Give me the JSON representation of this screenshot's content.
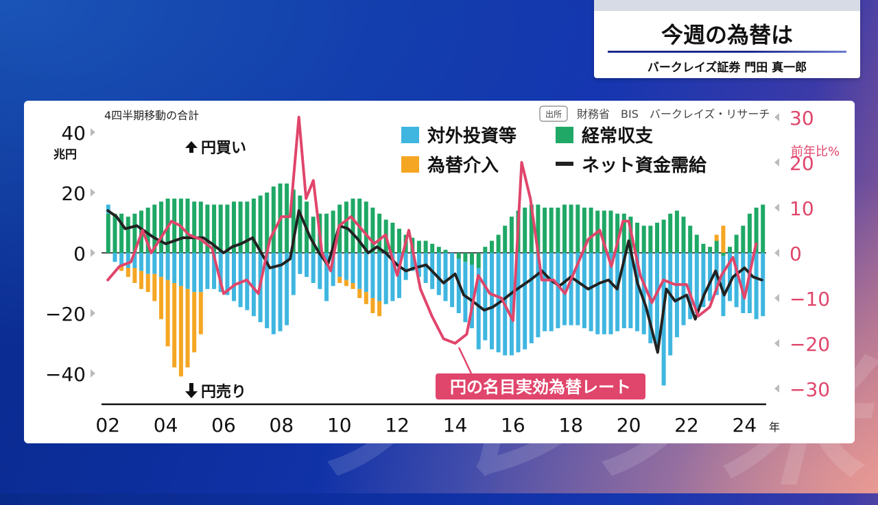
{
  "header": {
    "title": "今週の為替は",
    "speaker": "バークレイズ証券 門田 真一郎"
  },
  "watermark": "ノレノ米",
  "chart_data": {
    "type": "bar",
    "subtitle": "4四半期移動の合計",
    "source_label": "出所",
    "source": "財務省　BIS　バークレイズ・リサーチ",
    "left_axis": {
      "unit": "兆円",
      "ticks": [
        "40",
        "20",
        "0",
        "−20",
        "−40"
      ],
      "ylim": [
        -50,
        40
      ]
    },
    "right_axis": {
      "unit": "前年比%",
      "ticks": [
        "30",
        "20",
        "10",
        "0",
        "−10",
        "−20",
        "−30"
      ],
      "ylim": [
        -30,
        30
      ]
    },
    "x_ticks": [
      "02",
      "04",
      "06",
      "08",
      "10",
      "12",
      "14",
      "16",
      "18",
      "20",
      "22",
      "24"
    ],
    "x_unit": "年",
    "annotations": {
      "up": "円買い",
      "down": "円売り",
      "line_label": "円の名目実効為替レート"
    },
    "legend": [
      {
        "name": "対外投資等",
        "color": "#3fb6e0"
      },
      {
        "name": "経常収支",
        "color": "#1fa866"
      },
      {
        "name": "為替介入",
        "color": "#f5a623"
      },
      {
        "name": "ネット資金需給",
        "color": "#222222"
      }
    ],
    "x_range": [
      2001.9,
      2024.75
    ],
    "series": [
      {
        "name": "経常収支",
        "color": "#1fa866",
        "values": [
          13,
          13,
          13,
          12,
          13,
          14,
          15,
          16,
          17,
          18,
          18,
          18,
          18,
          17,
          17,
          16,
          16,
          16,
          16,
          17,
          17,
          17,
          18,
          19,
          20,
          22,
          23,
          23,
          21,
          19,
          17,
          12,
          13,
          13,
          14,
          16,
          17,
          18,
          18,
          17,
          15,
          13,
          11,
          10,
          8,
          6,
          5,
          4,
          4,
          3,
          2,
          1,
          0,
          -2,
          -3,
          -4,
          -5,
          2,
          4,
          6,
          9,
          12,
          14,
          15,
          16,
          16,
          15,
          15,
          15,
          16,
          16,
          16,
          15,
          15,
          14,
          14,
          14,
          13,
          13,
          12,
          10,
          9,
          9,
          10,
          11,
          13,
          14,
          12,
          9,
          6,
          3,
          2,
          4,
          -1,
          2,
          6,
          9,
          13,
          15,
          16
        ]
      },
      {
        "name": "対外投資等",
        "color": "#3fb6e0",
        "values": [
          3,
          -3,
          -4,
          -5,
          -5,
          -6,
          -7,
          -7,
          -8,
          -9,
          -10,
          -11,
          -12,
          -13,
          -13,
          -12,
          -12,
          -13,
          -14,
          -16,
          -18,
          -19,
          -21,
          -23,
          -25,
          -27,
          -26,
          -24,
          -14,
          -7,
          -8,
          -10,
          -12,
          -16,
          -11,
          -8,
          -9,
          -10,
          -12,
          -13,
          -15,
          -16,
          -17,
          -16,
          -15,
          -9,
          -6,
          -8,
          -10,
          -12,
          -14,
          -16,
          -18,
          -18,
          -20,
          -21,
          -27,
          -29,
          -32,
          -33,
          -34,
          -34,
          -33,
          -32,
          -30,
          -28,
          -26,
          -26,
          -25,
          -24,
          -24,
          -24,
          -25,
          -26,
          -27,
          -27,
          -27,
          -26,
          -25,
          -25,
          -26,
          -27,
          -30,
          -32,
          -44,
          -34,
          -28,
          -24,
          -22,
          -20,
          -18,
          -16,
          -14,
          -20,
          -16,
          -18,
          -20,
          -20,
          -22,
          -21
        ]
      },
      {
        "name": "為替介入",
        "color": "#f5a623",
        "values": [
          0,
          0,
          -2,
          -3,
          -5,
          -6,
          -6,
          -9,
          -14,
          -22,
          -28,
          -30,
          -26,
          -20,
          -14,
          0,
          0,
          0,
          0,
          0,
          0,
          0,
          0,
          0,
          0,
          0,
          0,
          0,
          0,
          0,
          0,
          0,
          0,
          0,
          0,
          -2,
          -2,
          -2,
          -3,
          -4,
          -5,
          -5,
          0,
          0,
          0,
          0,
          0,
          0,
          0,
          0,
          0,
          0,
          0,
          0,
          0,
          0,
          0,
          0,
          0,
          0,
          0,
          0,
          0,
          0,
          0,
          0,
          0,
          0,
          0,
          0,
          0,
          0,
          0,
          0,
          0,
          0,
          0,
          0,
          0,
          0,
          0,
          0,
          0,
          0,
          0,
          0,
          0,
          0,
          0,
          0,
          0,
          0,
          2,
          9,
          0,
          0,
          0,
          0,
          0,
          0
        ]
      },
      {
        "name": "ネット資金需給",
        "color": "#222222",
        "x": [
          2002,
          2002.3,
          2002.6,
          2003,
          2003.3,
          2003.6,
          2004,
          2004.3,
          2004.6,
          2005,
          2005.3,
          2005.6,
          2006,
          2006.3,
          2006.6,
          2007,
          2007.3,
          2007.6,
          2008,
          2008.3,
          2008.6,
          2009,
          2009.3,
          2009.6,
          2010,
          2010.3,
          2010.6,
          2011,
          2011.3,
          2011.6,
          2012,
          2012.3,
          2012.6,
          2013,
          2013.3,
          2013.6,
          2014,
          2014.3,
          2014.6,
          2015,
          2015.3,
          2015.6,
          2016,
          2016.3,
          2016.6,
          2017,
          2017.3,
          2017.6,
          2018,
          2018.3,
          2018.6,
          2019,
          2019.3,
          2019.6,
          2020,
          2020.3,
          2020.6,
          2021,
          2021.3,
          2021.6,
          2022,
          2022.3,
          2022.6,
          2023,
          2023.3,
          2023.6,
          2024,
          2024.3,
          2024.6
        ],
        "values": [
          14,
          12,
          8,
          9,
          7,
          5,
          3,
          4,
          5,
          5,
          5,
          3,
          0,
          2,
          3,
          5,
          0,
          -5,
          -4,
          -2,
          14,
          5,
          0,
          -4,
          9,
          8,
          5,
          0,
          2,
          0,
          -4,
          -6,
          -5,
          -4,
          -7,
          -10,
          -7,
          -14,
          -16,
          -19,
          -18,
          -16,
          -13,
          -11,
          -9,
          -6,
          -9,
          -11,
          -8,
          -10,
          -12,
          -10,
          -9,
          -12,
          4,
          -10,
          -18,
          -33,
          -12,
          -16,
          -14,
          -22,
          -14,
          -6,
          -14,
          -8,
          -5,
          -8,
          -9
        ]
      },
      {
        "name": "円の名目実効為替レート",
        "color": "#e0456b",
        "axis": "right",
        "x": [
          2002,
          2002.4,
          2002.8,
          2003.2,
          2003.5,
          2003.8,
          2004.2,
          2004.5,
          2004.8,
          2005.2,
          2005.6,
          2006,
          2006.4,
          2006.8,
          2007.2,
          2007.6,
          2008,
          2008.3,
          2008.6,
          2008.85,
          2009.1,
          2009.4,
          2009.7,
          2010,
          2010.4,
          2010.8,
          2011.2,
          2011.6,
          2012,
          2012.4,
          2012.8,
          2013.2,
          2013.6,
          2014,
          2014.4,
          2014.8,
          2015.2,
          2015.6,
          2016,
          2016.3,
          2016.6,
          2017,
          2017.4,
          2017.8,
          2018.2,
          2018.6,
          2019,
          2019.4,
          2019.8,
          2020,
          2020.4,
          2020.8,
          2021.2,
          2021.6,
          2022,
          2022.4,
          2022.8,
          2023.2,
          2023.6,
          2024,
          2024.4
        ],
        "values": [
          -6,
          -3,
          -2,
          5,
          0,
          3,
          7,
          6,
          4,
          3,
          1,
          -9,
          -7,
          -6,
          -9,
          3,
          8,
          8,
          30,
          12,
          16,
          0,
          -4,
          6,
          8,
          5,
          2,
          4,
          -5,
          5,
          -8,
          -14,
          -19,
          -20,
          -18,
          -5,
          -9,
          -10,
          -15,
          20,
          12,
          -6,
          -6,
          -9,
          -3,
          3,
          5,
          -3,
          7,
          7,
          -5,
          -11,
          -6,
          -7,
          -7,
          -14,
          -12,
          -5,
          -1,
          -10,
          2
        ]
      }
    ]
  }
}
